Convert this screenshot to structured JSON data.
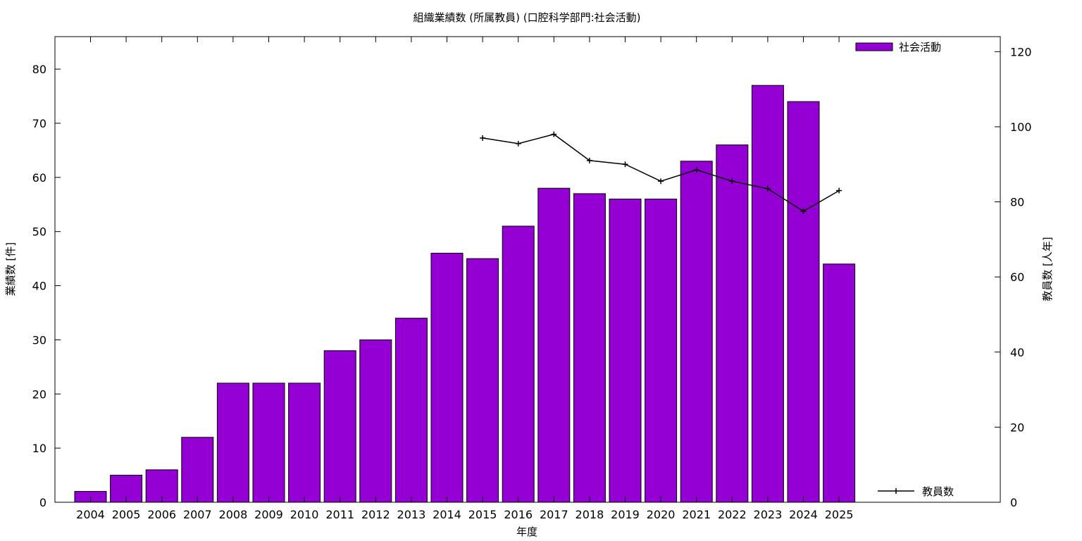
{
  "chart_data": {
    "type": "bar",
    "title": "組織業績数 (所属教員) (口腔科学部門:社会活動)",
    "xlabel": "年度",
    "ylabel": "業績数 [件]",
    "y2label": "教員数 [人年]",
    "categories": [
      "2004",
      "2005",
      "2006",
      "2007",
      "2008",
      "2009",
      "2010",
      "2011",
      "2012",
      "2013",
      "2014",
      "2015",
      "2016",
      "2017",
      "2018",
      "2019",
      "2020",
      "2021",
      "2022",
      "2023",
      "2024",
      "2025"
    ],
    "ylim": [
      0,
      86
    ],
    "y2lim": [
      0,
      124
    ],
    "yticks": [
      0,
      10,
      20,
      30,
      40,
      50,
      60,
      70,
      80
    ],
    "y2ticks": [
      0,
      20,
      40,
      60,
      80,
      100,
      120
    ],
    "grid": false,
    "series": [
      {
        "name": "社会活動",
        "type": "bar",
        "axis": "left",
        "color": "#9400d3",
        "values": [
          2,
          5,
          6,
          12,
          22,
          22,
          22,
          28,
          30,
          34,
          46,
          45,
          51,
          58,
          57,
          56,
          56,
          63,
          66,
          77,
          74,
          44
        ]
      },
      {
        "name": "教員数",
        "type": "line",
        "axis": "right",
        "color": "#000000",
        "values": [
          null,
          null,
          null,
          null,
          null,
          null,
          null,
          null,
          null,
          null,
          null,
          97,
          95.5,
          98,
          91,
          90,
          85.5,
          88.5,
          85.5,
          83.5,
          77.5,
          83
        ]
      }
    ],
    "legend": [
      {
        "label": "社会活動",
        "placement": "top-right"
      },
      {
        "label": "教員数",
        "placement": "bottom-right"
      }
    ]
  }
}
